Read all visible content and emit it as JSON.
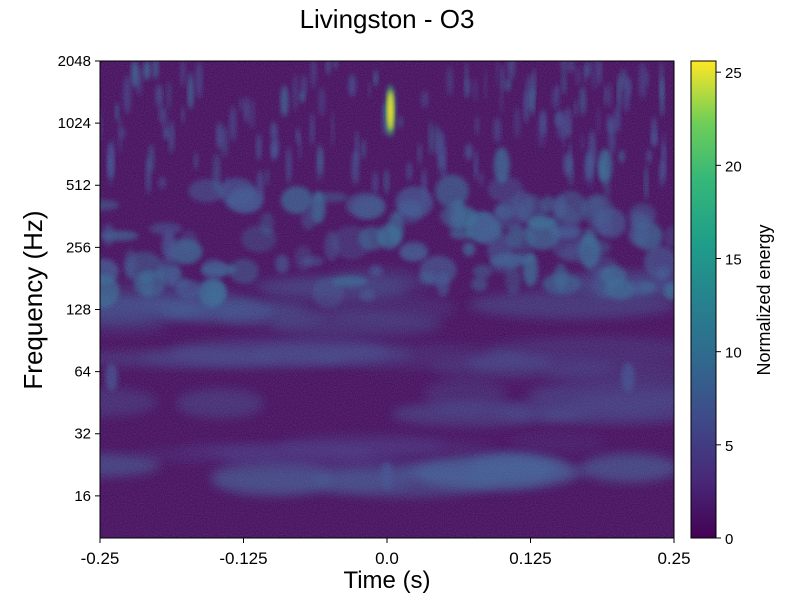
{
  "chart_data": {
    "type": "heatmap",
    "title": "Livingston - O3",
    "xlabel": "Time (s)",
    "ylabel": "Frequency (Hz)",
    "x_ticks": [
      "-0.25",
      "-0.125",
      "0.0",
      "0.125",
      "0.25"
    ],
    "x_tick_values": [
      -0.25,
      -0.125,
      0.0,
      0.125,
      0.25
    ],
    "xlim": [
      -0.25,
      0.25
    ],
    "y_ticks": [
      "16",
      "32",
      "64",
      "128",
      "256",
      "512",
      "1024",
      "2048"
    ],
    "y_tick_values": [
      16,
      32,
      64,
      128,
      256,
      512,
      1024,
      2048
    ],
    "ylim": [
      10,
      2048
    ],
    "y_scale": "log2",
    "colorbar": {
      "label": "Normalized energy",
      "ticks": [
        "0",
        "5",
        "10",
        "15",
        "20",
        "25"
      ],
      "tick_values": [
        0,
        5,
        10,
        15,
        20,
        25
      ],
      "range": [
        0,
        25.6
      ],
      "colormap": "viridis"
    },
    "grid": false,
    "features": [
      {
        "t": 0.003,
        "f": 1100,
        "energy": 25,
        "note": "bright glitch"
      },
      {
        "t": 0.1,
        "f": 640,
        "energy": 10
      },
      {
        "t": -0.06,
        "f": 400,
        "energy": 8
      },
      {
        "t": 0.125,
        "f": 200,
        "energy": 9
      },
      {
        "t": -0.19,
        "f": 260,
        "energy": 7
      },
      {
        "t": 0.19,
        "f": 640,
        "energy": 8
      },
      {
        "t": 0.0,
        "f": 20,
        "energy": 5
      },
      {
        "t": 0.21,
        "f": 60,
        "energy": 6
      },
      {
        "t": -0.24,
        "f": 60,
        "energy": 5
      }
    ]
  }
}
